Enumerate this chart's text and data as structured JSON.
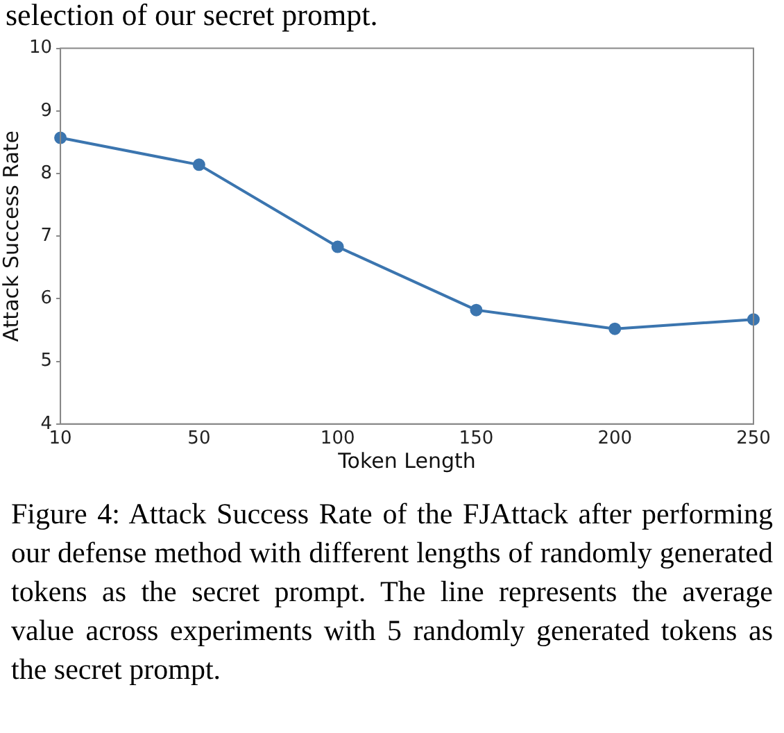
{
  "chart_data": {
    "type": "line",
    "xlabel": "Token Length",
    "ylabel": "Attack Success Rate",
    "categories": [
      "10",
      "50",
      "100",
      "150",
      "200",
      "250"
    ],
    "series": [
      {
        "color": "#3b75af",
        "values": [
          8.57,
          8.14,
          6.83,
          5.82,
          5.52,
          5.67
        ]
      }
    ],
    "ylim": [
      4,
      10
    ],
    "yticks": [
      4,
      5,
      6,
      7,
      8,
      9,
      10
    ],
    "grid": false,
    "legend": false,
    "marker": "circle",
    "line_style": "solid",
    "annotations": [
      "selection of our secret prompt.",
      "Figure 4: Attack Success Rate of the FJAttack after performing our defense method with different lengths of randomly generated tokens as the secret prompt. The line represents the average value across experiments with 5 randomly generated tokens as the secret prompt."
    ]
  }
}
